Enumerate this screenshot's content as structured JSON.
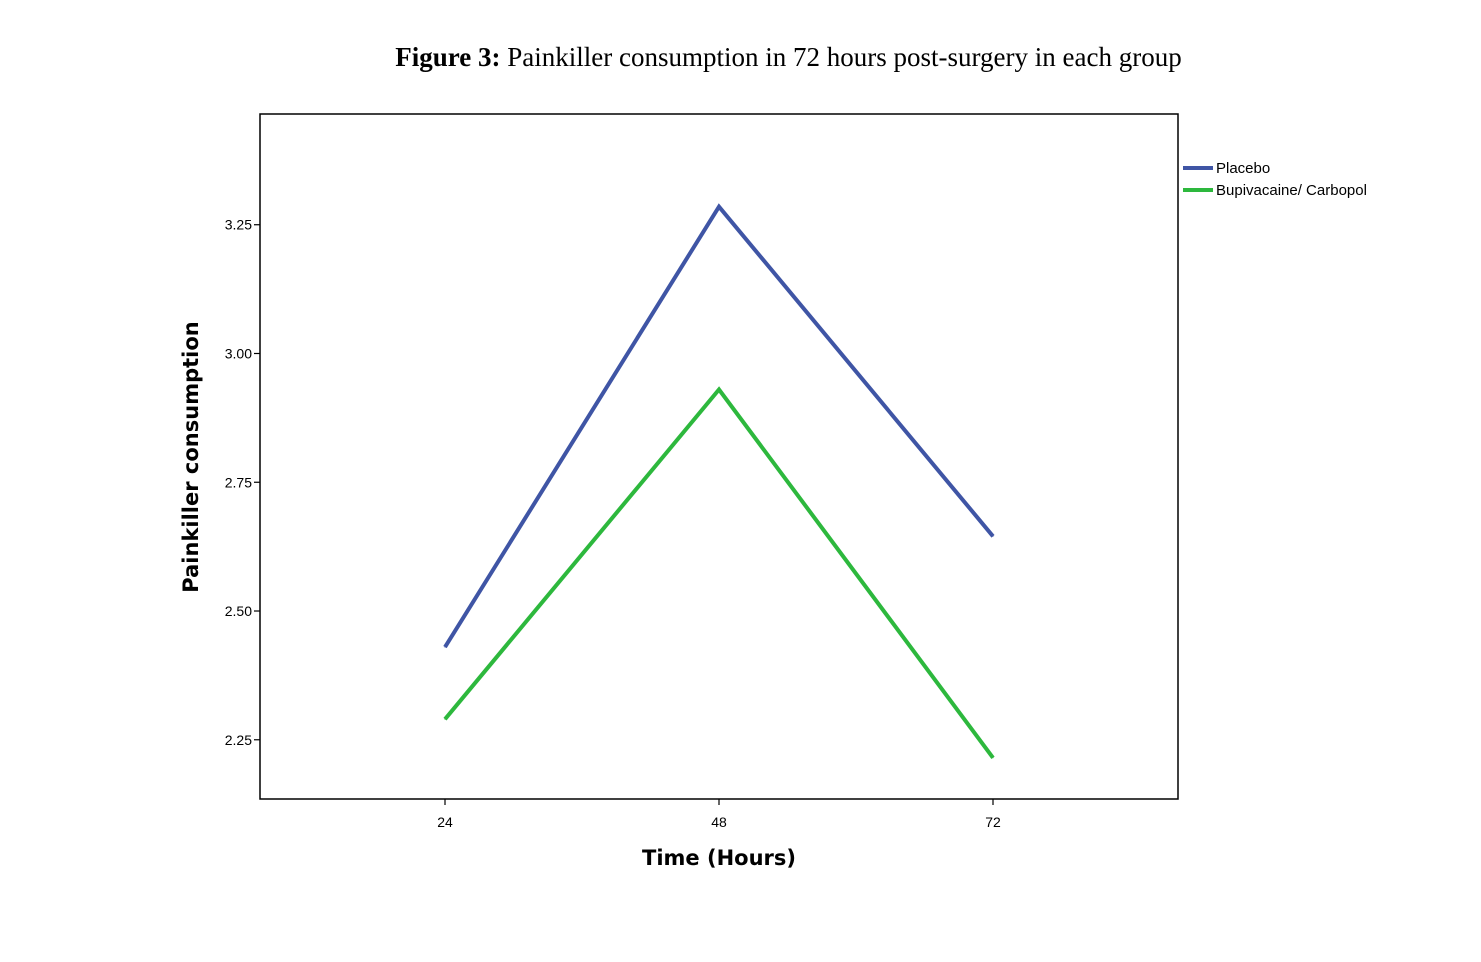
{
  "caption": {
    "label": "Figure 3:",
    "text": "Painkiller consumption in 72 hours post-surgery in each group"
  },
  "chart_data": {
    "type": "line",
    "title": "Figure 3: Painkiller consumption in 72 hours post-surgery in each group",
    "xlabel": "Time (Hours)",
    "ylabel": "Painkiller consumption",
    "categories": [
      "24",
      "48",
      "72"
    ],
    "yticks": [
      "2.25",
      "2.50",
      "2.75",
      "3.00",
      "3.25"
    ],
    "ylim": [
      2.135,
      3.465
    ],
    "grid": false,
    "legend_position": "top-right outside plot",
    "series": [
      {
        "name": "Placebo",
        "color": "#3f55a5",
        "values": [
          2.43,
          3.285,
          2.645
        ]
      },
      {
        "name": "Bupivacaine/ Carbopol",
        "color": "#2db83d",
        "values": [
          2.29,
          2.93,
          2.215
        ]
      }
    ]
  }
}
